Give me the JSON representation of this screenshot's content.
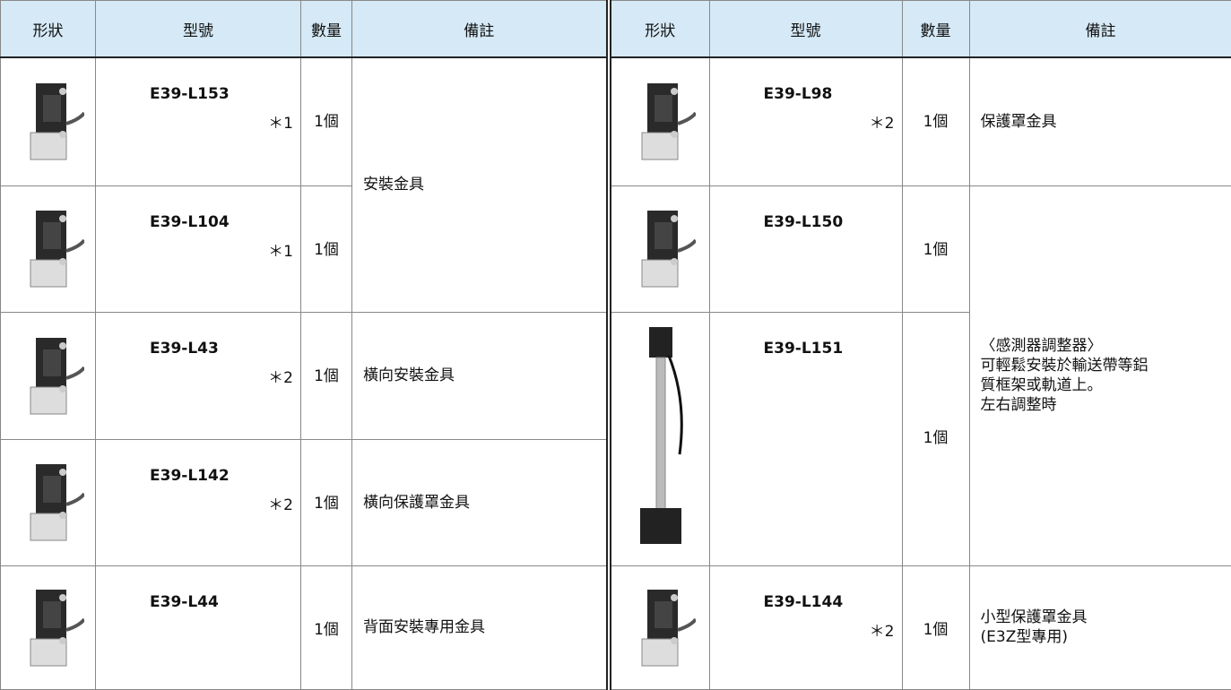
{
  "header": [
    "形狀",
    "型號",
    "數量",
    "備註"
  ],
  "left_rows": [
    {
      "model": "E39-L153",
      "mark": "＊1",
      "qty": "1個",
      "remark": [
        "安裝金具"
      ]
    },
    {
      "model": "E39-L104",
      "mark": "＊1",
      "qty": "1個"
    },
    {
      "model": "E39-L43",
      "mark": "＊2",
      "qty": "1個",
      "remark": [
        "橫向安裝金具"
      ]
    },
    {
      "model": "E39-L142",
      "mark": "＊2",
      "qty": "1個",
      "remark": [
        "橫向保護罩金具"
      ]
    },
    {
      "model": "E39-L44",
      "qty": "1個",
      "remark": [
        "背面安裝專用金具"
      ]
    }
  ],
  "right_rows": [
    {
      "model": "E39-L98",
      "mark": "＊2",
      "qty": "1個",
      "remark": [
        "保護罩金具"
      ]
    },
    {
      "model": "E39-L150",
      "qty": "1個",
      "remark": [
        "〈感測器調整器〉",
        "可輕鬆安裝於輸送帶等鋁",
        "質框架或軌道上。",
        "左右調整時"
      ]
    },
    {
      "model": "E39-L151",
      "qty": "1個"
    },
    {
      "model": "E39-L144",
      "mark": "＊2",
      "qty": "1個",
      "remark": [
        "小型保護罩金具",
        "(E3Z型專用)"
      ]
    }
  ]
}
